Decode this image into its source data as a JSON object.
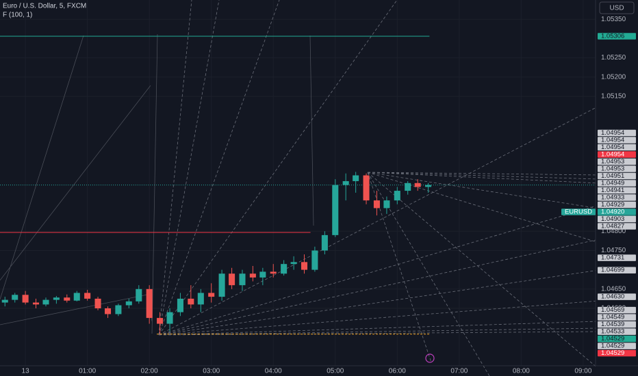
{
  "header": {
    "symbol": "Euro / U.S. Dollar, 5, FXCM",
    "indicator": "F (100, 1)",
    "currency": "USD"
  },
  "chart_data": {
    "type": "candlestick",
    "xlim": [
      -0.41,
      9.2
    ],
    "ylim": [
      1.04451,
      1.054
    ],
    "xticks": [
      {
        "value": 0,
        "label": "13"
      },
      {
        "value": 1,
        "label": "01:00"
      },
      {
        "value": 2,
        "label": "02:00"
      },
      {
        "value": 3,
        "label": "03:00"
      },
      {
        "value": 4,
        "label": "04:00"
      },
      {
        "value": 5,
        "label": "05:00"
      },
      {
        "value": 6,
        "label": "06:00"
      },
      {
        "value": 7,
        "label": "07:00"
      },
      {
        "value": 8,
        "label": "08:00"
      },
      {
        "value": 9,
        "label": "09:00"
      }
    ],
    "yticks": [
      {
        "value": 1.0535,
        "label": "1.05350"
      },
      {
        "value": 1.0525,
        "label": "1.05250"
      },
      {
        "value": 1.052,
        "label": "1.05200"
      },
      {
        "value": 1.0515,
        "label": "1.05150"
      },
      {
        "value": 1.048,
        "label": "1.04800"
      },
      {
        "value": 1.0475,
        "label": "1.04750"
      },
      {
        "value": 1.0465,
        "label": "1.04650"
      },
      {
        "value": 1.046,
        "label": "1.04600"
      }
    ],
    "up_color": "#26a69a",
    "down_color": "#ef5350",
    "x": [
      -0.33,
      -0.17,
      0,
      0.17,
      0.33,
      0.5,
      0.67,
      0.83,
      1,
      1.17,
      1.33,
      1.5,
      1.67,
      1.83,
      2,
      2.17,
      2.33,
      2.5,
      2.67,
      2.83,
      3,
      3.17,
      3.33,
      3.5,
      3.67,
      3.83,
      4,
      4.17,
      4.33,
      4.5,
      4.67,
      4.83,
      5,
      5.17,
      5.33,
      5.5,
      5.67,
      5.83,
      6,
      6.17,
      6.33,
      6.5
    ],
    "open": [
      1.04615,
      1.04622,
      1.04635,
      1.04615,
      1.0461,
      1.04622,
      1.04628,
      1.0462,
      1.0464,
      1.04625,
      1.046,
      1.04585,
      1.04608,
      1.04618,
      1.0465,
      1.04575,
      1.0456,
      1.0459,
      1.04625,
      1.0461,
      1.0464,
      1.0463,
      1.0469,
      1.0466,
      1.0469,
      1.0468,
      1.04695,
      1.0469,
      1.04715,
      1.0472,
      1.047,
      1.0475,
      1.0479,
      1.0492,
      1.0493,
      1.04945,
      1.0488,
      1.0486,
      1.0488,
      1.04905,
      1.04925,
      1.04915
    ],
    "high": [
      1.0463,
      1.0464,
      1.04645,
      1.04625,
      1.04628,
      1.04632,
      1.04636,
      1.04645,
      1.04648,
      1.0463,
      1.04605,
      1.04612,
      1.04625,
      1.0466,
      1.0466,
      1.0459,
      1.046,
      1.0464,
      1.0466,
      1.0465,
      1.04665,
      1.047,
      1.04705,
      1.047,
      1.0471,
      1.04705,
      1.04715,
      1.04725,
      1.04735,
      1.0474,
      1.0476,
      1.048,
      1.04935,
      1.0495,
      1.04954,
      1.0495,
      1.04905,
      1.0489,
      1.04915,
      1.0493,
      1.04935,
      1.04925
    ],
    "low": [
      1.04605,
      1.04615,
      1.0461,
      1.046,
      1.04605,
      1.04612,
      1.04615,
      1.04618,
      1.0462,
      1.04595,
      1.04575,
      1.0458,
      1.046,
      1.04612,
      1.0456,
      1.04533,
      1.0454,
      1.0458,
      1.046,
      1.0459,
      1.04615,
      1.0462,
      1.0465,
      1.04645,
      1.0467,
      1.0466,
      1.0468,
      1.04685,
      1.047,
      1.0469,
      1.04695,
      1.0474,
      1.04785,
      1.0488,
      1.049,
      1.0487,
      1.04841,
      1.04845,
      1.0487,
      1.04895,
      1.04905,
      1.049
    ],
    "close": [
      1.04622,
      1.04635,
      1.04615,
      1.0461,
      1.04622,
      1.04628,
      1.0462,
      1.0464,
      1.04625,
      1.046,
      1.04585,
      1.04608,
      1.04618,
      1.0465,
      1.04575,
      1.0456,
      1.0459,
      1.04625,
      1.0461,
      1.0464,
      1.0463,
      1.0469,
      1.0466,
      1.0469,
      1.0468,
      1.04695,
      1.0469,
      1.04715,
      1.0472,
      1.047,
      1.0475,
      1.0479,
      1.0492,
      1.0493,
      1.04945,
      1.0488,
      1.0486,
      1.0488,
      1.04905,
      1.04925,
      1.04915,
      1.0492
    ],
    "price_labels": [
      {
        "value": 1.05306,
        "label": "1.05306",
        "color": "#22ab94"
      },
      {
        "value": 1.04954,
        "label": "1.04954",
        "color": "#c9cbd1"
      },
      {
        "value": 1.04954,
        "label": "1.04954",
        "color": "#c9cbd1"
      },
      {
        "value": 1.04954,
        "label": "1.04954",
        "color": "#c9cbd1"
      },
      {
        "value": 1.04954,
        "label": "1.04954",
        "color": "#f23645"
      },
      {
        "value": 1.04953,
        "label": "1.04953",
        "color": "#c9cbd1"
      },
      {
        "value": 1.04953,
        "label": "1.04953",
        "color": "#c9cbd1"
      },
      {
        "value": 1.04951,
        "label": "1.04951",
        "color": "#c9cbd1"
      },
      {
        "value": 1.04949,
        "label": "1.04949",
        "color": "#c9cbd1"
      },
      {
        "value": 1.04941,
        "label": "1.04941",
        "color": "#c9cbd1"
      },
      {
        "value": 1.04933,
        "label": "1.04933",
        "color": "#c9cbd1"
      },
      {
        "value": 1.04929,
        "label": "1.04929",
        "color": "#c9cbd1"
      },
      {
        "value": 1.0492,
        "label": "1.04920",
        "color": "#26a69a"
      },
      {
        "value": 1.04903,
        "label": "1.04903",
        "color": "#c9cbd1"
      },
      {
        "value": 1.04827,
        "label": "1.04827",
        "color": "#c9cbd1"
      },
      {
        "value": 1.04731,
        "label": "1.04731",
        "color": "#c9cbd1"
      },
      {
        "value": 1.04699,
        "label": "1.04699",
        "color": "#c9cbd1"
      },
      {
        "value": 1.0463,
        "label": "1.04630",
        "color": "#c9cbd1"
      },
      {
        "value": 1.04569,
        "label": "1.04569",
        "color": "#c9cbd1"
      },
      {
        "value": 1.04549,
        "label": "1.04549",
        "color": "#c9cbd1"
      },
      {
        "value": 1.04539,
        "label": "1.04539",
        "color": "#c9cbd1"
      },
      {
        "value": 1.04533,
        "label": "1.04533",
        "color": "#c9cbd1"
      },
      {
        "value": 1.04529,
        "label": "1.04529",
        "color": "#22ab94"
      },
      {
        "value": 1.04529,
        "label": "1.04529",
        "color": "#c9cbd1"
      },
      {
        "value": 1.04529,
        "label": "1.04529",
        "color": "#f23645"
      }
    ],
    "symbol_tag": "EURUSD",
    "countdown": "00:13",
    "levels": [
      {
        "value": 1.05306,
        "color": "#22ab94",
        "from": -0.41,
        "to": 6.52
      },
      {
        "value": 1.04797,
        "color": "#f23645",
        "from": -0.41,
        "to": 4.6
      },
      {
        "value": 1.04533,
        "color": "#f5a623",
        "from": 2.12,
        "to": 6.52
      }
    ]
  }
}
